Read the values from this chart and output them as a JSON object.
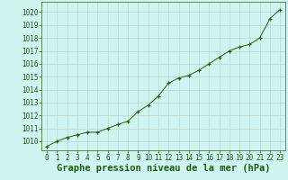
{
  "x": [
    0,
    1,
    2,
    3,
    4,
    5,
    6,
    7,
    8,
    9,
    10,
    11,
    12,
    13,
    14,
    15,
    16,
    17,
    18,
    19,
    20,
    21,
    22,
    23
  ],
  "y": [
    1009.6,
    1010.0,
    1010.3,
    1010.5,
    1010.7,
    1010.7,
    1011.0,
    1011.3,
    1011.55,
    1012.3,
    1012.8,
    1013.5,
    1014.5,
    1014.9,
    1015.1,
    1015.5,
    1016.0,
    1016.5,
    1017.0,
    1017.3,
    1017.5,
    1018.0,
    1019.5,
    1020.2
  ],
  "line_color": "#2d5a1b",
  "marker": "+",
  "bg_color": "#cef5ef",
  "grid_major_color": "#b8d8cc",
  "grid_minor_color": "#d0ebe5",
  "title": "Graphe pression niveau de la mer (hPa)",
  "xlim": [
    -0.5,
    23.5
  ],
  "ylim": [
    1009.3,
    1020.8
  ],
  "yticks": [
    1010,
    1011,
    1012,
    1013,
    1014,
    1015,
    1016,
    1017,
    1018,
    1019,
    1020
  ],
  "xticks": [
    0,
    1,
    2,
    3,
    4,
    5,
    6,
    7,
    8,
    9,
    10,
    11,
    12,
    13,
    14,
    15,
    16,
    17,
    18,
    19,
    20,
    21,
    22,
    23
  ],
  "tick_fontsize": 5.5,
  "title_fontsize": 7.5,
  "text_color": "#1a5c10",
  "spine_color": "#4a7a40"
}
